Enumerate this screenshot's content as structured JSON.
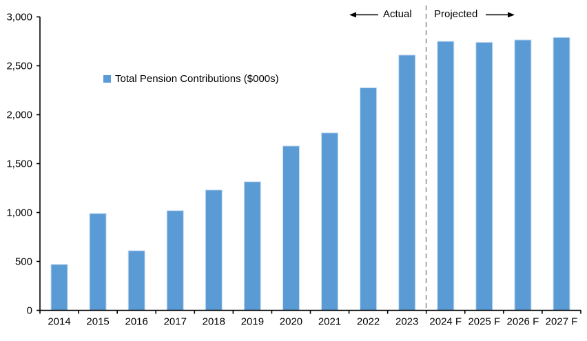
{
  "chart_data": {
    "type": "bar",
    "title": "",
    "legend": "Total Pension Contributions ($000s)",
    "categories": [
      "2014",
      "2015",
      "2016",
      "2017",
      "2018",
      "2019",
      "2020",
      "2021",
      "2022",
      "2023",
      "2024 F",
      "2025 F",
      "2026 F",
      "2027 F"
    ],
    "values": [
      470,
      990,
      610,
      1020,
      1230,
      1315,
      1680,
      1815,
      2275,
      2610,
      2750,
      2740,
      2765,
      2790
    ],
    "xlabel": "",
    "ylabel": "",
    "ylim": [
      0,
      3000
    ],
    "ytick_step": 500,
    "ytick_labels": [
      "0",
      "500",
      "1,000",
      "1,500",
      "2,000",
      "2,500",
      "3,000"
    ],
    "grid": false,
    "legend_position": "inside-upper-left",
    "colors": {
      "bar_fill": "#5B9BD5",
      "bar_border": "#c9ddf1",
      "axis": "#000000",
      "divider": "#A6A6A6",
      "text": "#000000"
    },
    "divider": {
      "after_category_index": 9,
      "style": "dashed"
    },
    "annotations": {
      "actual": "Actual",
      "projected": "Projected"
    }
  }
}
